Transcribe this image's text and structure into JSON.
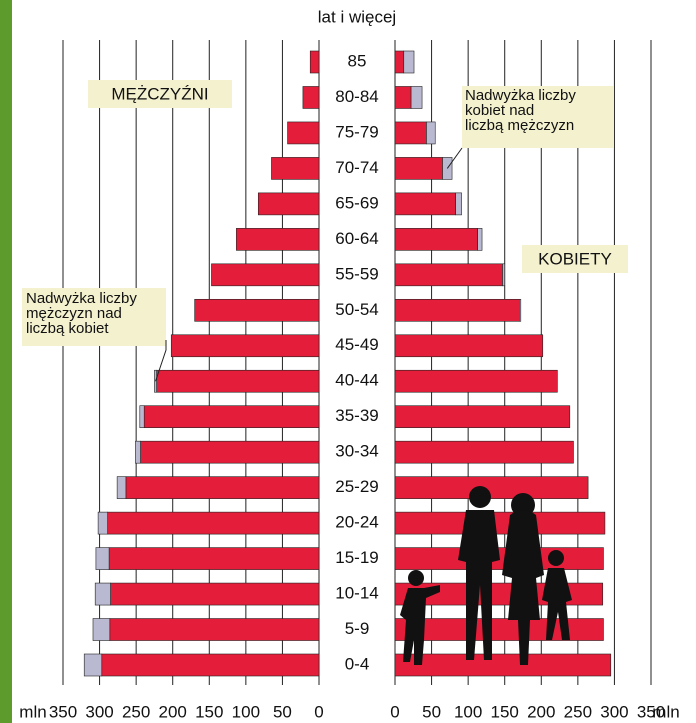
{
  "chart_data": {
    "type": "population-pyramid",
    "title": "lat i więcej",
    "unit": "mln",
    "categories": [
      "85",
      "80-84",
      "75-79",
      "70-74",
      "65-69",
      "60-64",
      "55-59",
      "50-54",
      "45-49",
      "40-44",
      "35-39",
      "30-34",
      "25-29",
      "20-24",
      "15-19",
      "10-14",
      "5-9",
      "0-4"
    ],
    "series": [
      {
        "name": "MĘŻCZYŹNI",
        "color": "#e41e3a",
        "values": [
          12,
          22,
          43,
          65,
          83,
          113,
          147,
          170,
          202,
          222,
          239,
          244,
          264,
          289,
          287,
          285,
          286,
          297
        ]
      },
      {
        "name": "KOBIETY",
        "color": "#e41e3a",
        "values": [
          12,
          22,
          43,
          65,
          83,
          113,
          147,
          170,
          202,
          222,
          239,
          244,
          264,
          287,
          285,
          284,
          285,
          295
        ]
      }
    ],
    "excess_men": {
      "label": "Nadwyżka liczby mężczyzn nad liczbą kobiet",
      "color": "#b9b9d1",
      "values": [
        0,
        0,
        0,
        0,
        0,
        0,
        0,
        0,
        0,
        3,
        6,
        7,
        12,
        13,
        18,
        21,
        23,
        24
      ]
    },
    "excess_women": {
      "label": "Nadwyżka liczby kobiet nad liczbą mężczyzn",
      "color": "#b9b9d1",
      "values": [
        14,
        15,
        12,
        13,
        8,
        6,
        3,
        2,
        0,
        0,
        0,
        0,
        0,
        0,
        0,
        0,
        0,
        0
      ]
    },
    "xlim": [
      0,
      350
    ],
    "xticks": [
      0,
      50,
      100,
      150,
      200,
      250,
      300,
      350
    ],
    "grid": true
  }
}
